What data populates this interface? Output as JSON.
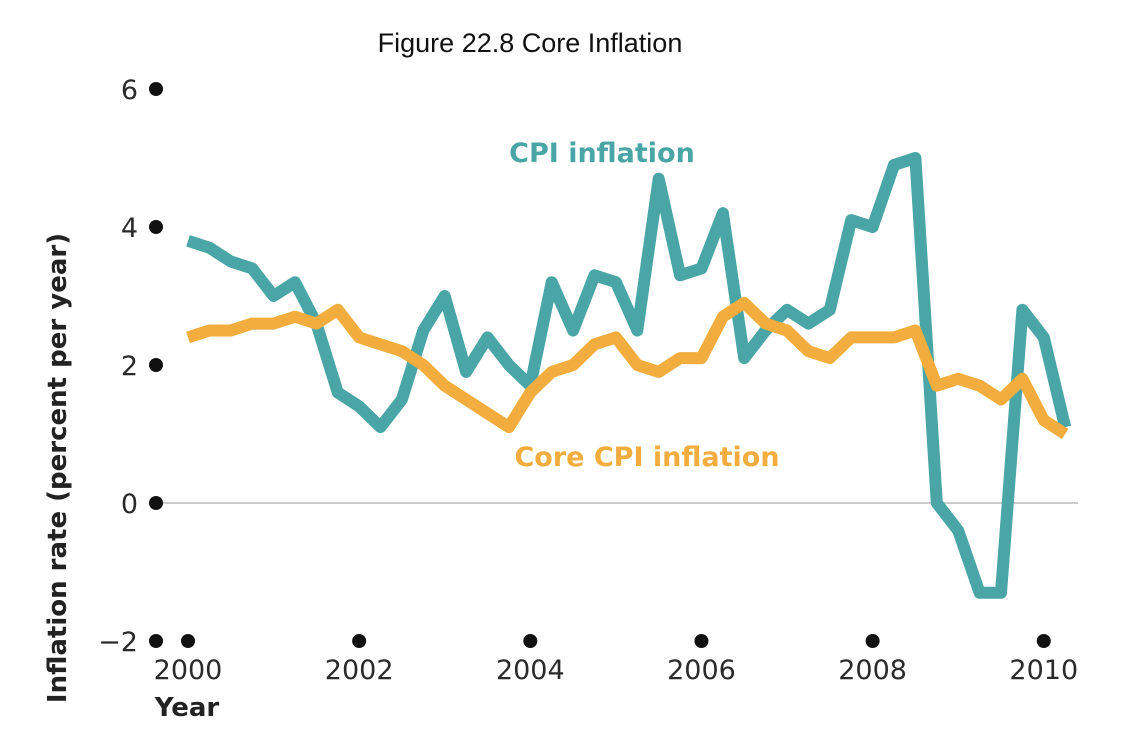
{
  "chart_data": {
    "type": "line",
    "title": "Figure 22.8 Core Inflation",
    "xlabel": "Year",
    "ylabel": "Inflation rate (percent per year)",
    "xlim": [
      2000,
      2010.4
    ],
    "ylim": [
      -2,
      6
    ],
    "x_ticks": [
      2000,
      2002,
      2004,
      2006,
      2008,
      2010
    ],
    "x_tick_labels": [
      "2000",
      "2002",
      "2004",
      "2006",
      "2008",
      "2010"
    ],
    "y_ticks": [
      -2,
      0,
      2,
      4,
      6
    ],
    "y_tick_labels": [
      "−2",
      "0",
      "2",
      "4",
      "6"
    ],
    "zero_line": true,
    "colors": {
      "cpi": "#4aa6a6",
      "core": "#f2ad3e",
      "axis": "#cccccc",
      "dot": "#111111"
    },
    "series": [
      {
        "key": "cpi",
        "name": "CPI inflation",
        "x": [
          2000.0,
          2000.25,
          2000.5,
          2000.75,
          2001.0,
          2001.25,
          2001.5,
          2001.75,
          2002.0,
          2002.25,
          2002.5,
          2002.75,
          2003.0,
          2003.25,
          2003.5,
          2003.75,
          2004.0,
          2004.25,
          2004.5,
          2004.75,
          2005.0,
          2005.25,
          2005.5,
          2005.75,
          2006.0,
          2006.25,
          2006.5,
          2006.75,
          2007.0,
          2007.25,
          2007.5,
          2007.75,
          2008.0,
          2008.25,
          2008.5,
          2008.75,
          2009.0,
          2009.25,
          2009.5,
          2009.75,
          2010.0,
          2010.25
        ],
        "y": [
          3.8,
          3.7,
          3.5,
          3.4,
          3.0,
          3.2,
          2.6,
          1.6,
          1.4,
          1.1,
          1.5,
          2.5,
          3.0,
          1.9,
          2.4,
          2.0,
          1.7,
          3.2,
          2.5,
          3.3,
          3.2,
          2.5,
          4.7,
          3.3,
          3.4,
          4.2,
          2.1,
          2.5,
          2.8,
          2.6,
          2.8,
          4.1,
          4.0,
          4.9,
          5.0,
          0.0,
          -0.4,
          -1.3,
          -1.3,
          2.8,
          2.4,
          1.1
        ]
      },
      {
        "key": "core",
        "name": "Core CPI inflation",
        "x": [
          2000.0,
          2000.25,
          2000.5,
          2000.75,
          2001.0,
          2001.25,
          2001.5,
          2001.75,
          2002.0,
          2002.25,
          2002.5,
          2002.75,
          2003.0,
          2003.25,
          2003.5,
          2003.75,
          2004.0,
          2004.25,
          2004.5,
          2004.75,
          2005.0,
          2005.25,
          2005.5,
          2005.75,
          2006.0,
          2006.25,
          2006.5,
          2006.75,
          2007.0,
          2007.25,
          2007.5,
          2007.75,
          2008.0,
          2008.25,
          2008.5,
          2008.75,
          2009.0,
          2009.25,
          2009.5,
          2009.75,
          2010.0,
          2010.25
        ],
        "y": [
          2.4,
          2.5,
          2.5,
          2.6,
          2.6,
          2.7,
          2.6,
          2.8,
          2.4,
          2.3,
          2.2,
          2.0,
          1.7,
          1.5,
          1.3,
          1.1,
          1.6,
          1.9,
          2.0,
          2.3,
          2.4,
          2.0,
          1.9,
          2.1,
          2.1,
          2.7,
          2.9,
          2.6,
          2.5,
          2.2,
          2.1,
          2.4,
          2.4,
          2.4,
          2.5,
          1.7,
          1.8,
          1.7,
          1.5,
          1.8,
          1.2,
          1.0
        ]
      }
    ]
  }
}
